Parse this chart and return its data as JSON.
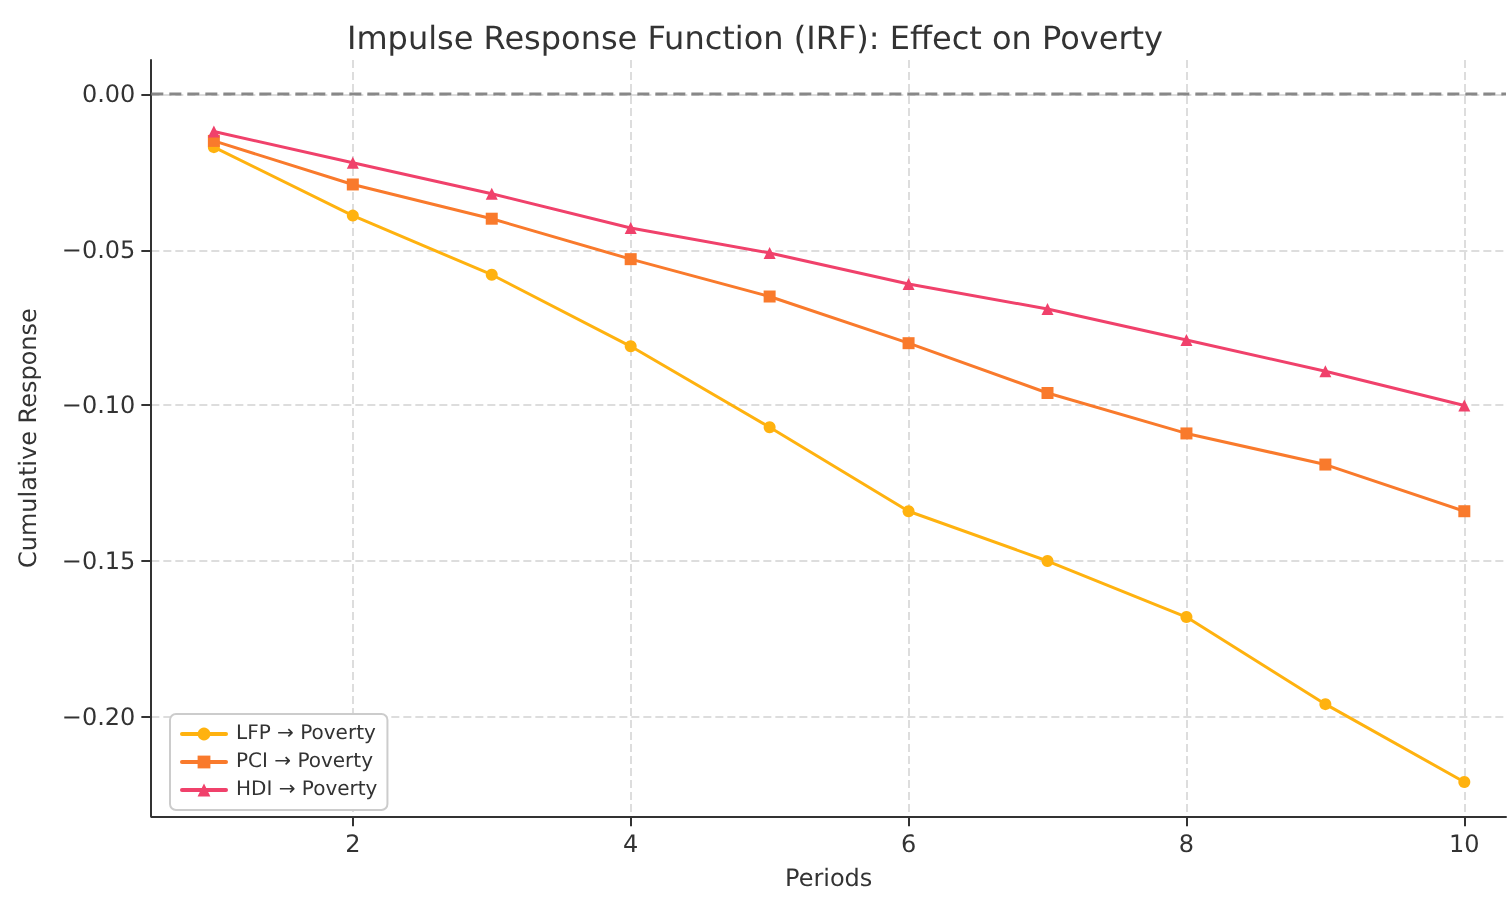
{
  "chart_data": {
    "type": "line",
    "title": "Impulse Response Function (IRF): Effect on Poverty",
    "xlabel": "Periods",
    "ylabel": "Cumulative Response",
    "x": [
      1,
      2,
      3,
      4,
      5,
      6,
      7,
      8,
      9,
      10
    ],
    "series": [
      {
        "name": "LFP → Poverty",
        "color": "#ffb20f",
        "marker": "circle",
        "values": [
          -0.017,
          -0.039,
          -0.058,
          -0.081,
          -0.107,
          -0.134,
          -0.15,
          -0.168,
          -0.196,
          -0.221
        ]
      },
      {
        "name": "PCI → Poverty",
        "color": "#f97a2c",
        "marker": "square",
        "values": [
          -0.015,
          -0.029,
          -0.04,
          -0.053,
          -0.065,
          -0.08,
          -0.096,
          -0.109,
          -0.119,
          -0.134
        ]
      },
      {
        "name": "HDI → Poverty",
        "color": "#f0416b",
        "marker": "triangle",
        "values": [
          -0.012,
          -0.022,
          -0.032,
          -0.043,
          -0.051,
          -0.061,
          -0.069,
          -0.079,
          -0.089,
          -0.1
        ]
      }
    ],
    "xlim": [
      0.55,
      10.3
    ],
    "xticks": [
      2,
      4,
      6,
      8,
      10
    ],
    "ylim": [
      -0.232,
      0.011
    ],
    "yticks": [
      {
        "value": 0,
        "label": "0.00"
      },
      {
        "value": -0.05,
        "label": "−0.05"
      },
      {
        "value": -0.1,
        "label": "−0.10"
      },
      {
        "value": -0.15,
        "label": "−0.15"
      },
      {
        "value": -0.2,
        "label": "−0.20"
      }
    ],
    "ref_lines": [
      {
        "axis": "y",
        "value": 0,
        "color": "#888888",
        "line_style": "dashed"
      }
    ],
    "grid": true,
    "legend": "bottom left",
    "line_style": "solid"
  }
}
